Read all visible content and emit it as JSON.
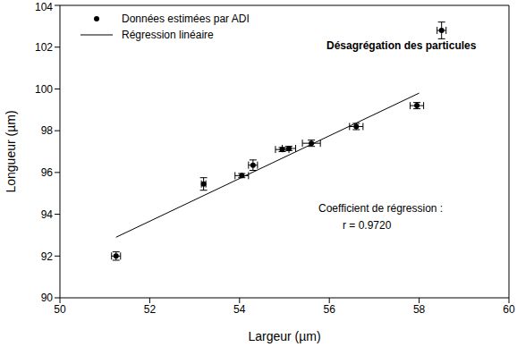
{
  "chart_data": {
    "type": "scatter",
    "xlabel": "Largeur (µm)",
    "ylabel": "Longueur (µm)",
    "xlim": [
      50,
      60
    ],
    "xticks": [
      50,
      52,
      54,
      56,
      58,
      60
    ],
    "ylim": [
      90,
      104
    ],
    "yticks": [
      90,
      92,
      94,
      96,
      98,
      100,
      102,
      104
    ],
    "grid": false,
    "legend": "upper left",
    "series": [
      {
        "name": "Données estimées par ADI",
        "type": "scatter",
        "color": "#000000",
        "marker": "circle",
        "x": [
          51.25,
          53.2,
          54.05,
          54.3,
          54.95,
          55.1,
          55.6,
          56.6,
          57.95,
          58.5
        ],
        "values": [
          92.0,
          95.45,
          95.85,
          96.35,
          97.1,
          97.15,
          97.4,
          98.2,
          99.2,
          102.8
        ],
        "x_error": [
          0.1,
          0.05,
          0.15,
          0.1,
          0.15,
          0.15,
          0.2,
          0.15,
          0.15,
          0.1
        ],
        "y_error": [
          0.2,
          0.3,
          0.1,
          0.25,
          0.1,
          0.1,
          0.15,
          0.15,
          0.15,
          0.4
        ]
      },
      {
        "name": "Régression linéaire",
        "type": "line",
        "color": "#000000",
        "line_style": "solid",
        "x": [
          51.25,
          58.0
        ],
        "values": [
          92.9,
          99.8
        ]
      }
    ],
    "annotations": [
      {
        "text": "Désagrégation des particules"
      },
      {
        "text": "Coefficient de régression :"
      },
      {
        "text": "r = 0.9720"
      }
    ]
  }
}
